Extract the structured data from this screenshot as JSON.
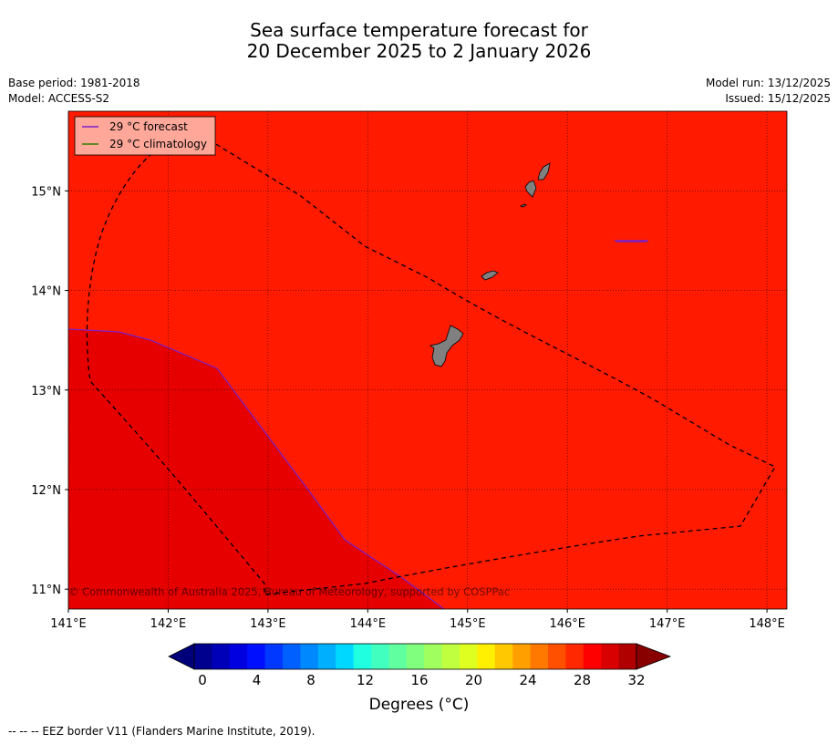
{
  "title": {
    "line1": "Sea surface temperature forecast for",
    "line2": "20 December 2025 to 2 January 2026"
  },
  "meta": {
    "base_period": "Base period: 1981-2018",
    "model": "Model: ACCESS-S2",
    "model_run": "Model run: 13/12/2025",
    "issued": "Issued: 15/12/2025"
  },
  "map": {
    "lon_range": [
      141.0,
      148.2
    ],
    "lat_range": [
      10.8,
      15.8
    ],
    "x_ticks": [
      "141°E",
      "142°E",
      "143°E",
      "144°E",
      "145°E",
      "146°E",
      "147°E",
      "148°E"
    ],
    "y_ticks": [
      "11°N",
      "12°N",
      "13°N",
      "14°N",
      "15°N"
    ],
    "grid": true,
    "background_color": "#ff1a00",
    "warm_region_color": "#e60000",
    "land_color": "#808080",
    "forecast_line_color": "#7b1fc7",
    "climatology_line_color": "#2e7d00",
    "legend": {
      "placement": "top-left",
      "forecast_label": "29 °C  forecast",
      "climatology_label": "29 °C  climatology"
    },
    "copyright": "© Commonwealth of Australia 2025, Bureau of Meteorology, supported by COSPPac"
  },
  "colorbar": {
    "ticks": [
      "0",
      "4",
      "8",
      "12",
      "16",
      "20",
      "24",
      "28",
      "32"
    ],
    "label": "Degrees (°C)",
    "colors": [
      "#00008f",
      "#0000b8",
      "#0000e0",
      "#0010ff",
      "#0038ff",
      "#0060ff",
      "#0088ff",
      "#00b0ff",
      "#00d8ff",
      "#20ffdf",
      "#40ffbf",
      "#60ff9f",
      "#80ff7f",
      "#a0ff5f",
      "#bfff40",
      "#dfff20",
      "#ffef00",
      "#ffc800",
      "#ffa000",
      "#ff7800",
      "#ff5000",
      "#ff2800",
      "#ff0000",
      "#d80000",
      "#b00000"
    ],
    "under_color": "#00007a",
    "over_color": "#880000"
  },
  "footnote": "--  --  -- EEZ border V11 (Flanders Marine Institute, 2019)."
}
